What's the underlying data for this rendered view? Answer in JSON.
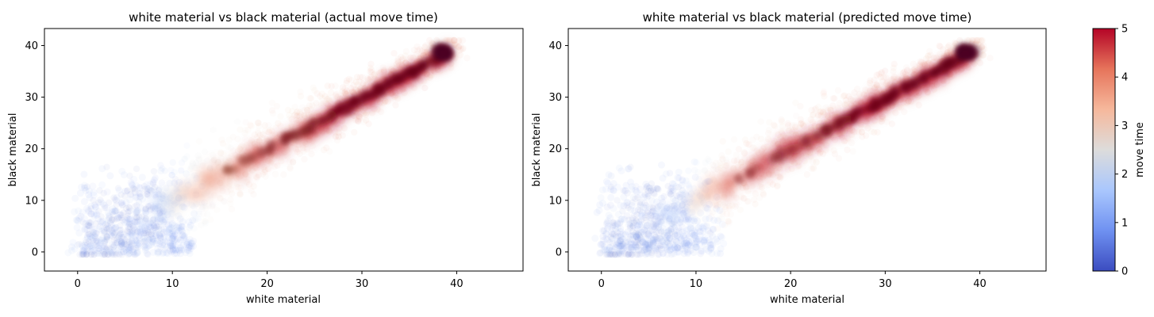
{
  "chart_data": [
    {
      "type": "scatter",
      "title": "white material vs black material (actual move time)",
      "xlabel": "white material",
      "ylabel": "black material",
      "xlim": [
        -3.5,
        47
      ],
      "ylim": [
        -3.7,
        43.3
      ],
      "xticks": [
        "0",
        "10",
        "20",
        "30",
        "40"
      ],
      "yticks": [
        "0",
        "10",
        "20",
        "30",
        "40"
      ],
      "color_by": "move time",
      "density": [
        {
          "x": 39,
          "y": 39,
          "move_time": 5
        },
        {
          "x": 33,
          "y": 32,
          "move_time": 5
        },
        {
          "x": 28,
          "y": 28,
          "move_time": 5
        },
        {
          "x": 24,
          "y": 24,
          "move_time": 4.6
        },
        {
          "x": 20,
          "y": 20,
          "move_time": 4.6
        },
        {
          "x": 16,
          "y": 16,
          "move_time": 4.2
        },
        {
          "x": 12,
          "y": 12,
          "move_time": 3.4
        },
        {
          "x": 8,
          "y": 8,
          "move_time": 1.6
        },
        {
          "x": 4,
          "y": 3,
          "move_time": 0.8
        },
        {
          "x": 1,
          "y": 5,
          "move_time": 0.6
        }
      ]
    },
    {
      "type": "scatter",
      "title": "white material vs black material (predicted move time)",
      "xlabel": "white material",
      "ylabel": "black material",
      "xlim": [
        -3.5,
        47
      ],
      "ylim": [
        -3.7,
        43.3
      ],
      "xticks": [
        "0",
        "10",
        "20",
        "30",
        "40"
      ],
      "yticks": [
        "0",
        "10",
        "20",
        "30",
        "40"
      ],
      "color_by": "move time",
      "density": [
        {
          "x": 39,
          "y": 39,
          "move_time": 5
        },
        {
          "x": 33,
          "y": 32,
          "move_time": 5
        },
        {
          "x": 28,
          "y": 28,
          "move_time": 5
        },
        {
          "x": 24,
          "y": 24,
          "move_time": 4.8
        },
        {
          "x": 20,
          "y": 20,
          "move_time": 4.8
        },
        {
          "x": 16,
          "y": 16,
          "move_time": 4.6
        },
        {
          "x": 12,
          "y": 12,
          "move_time": 4.2
        },
        {
          "x": 8,
          "y": 8,
          "move_time": 1.8
        },
        {
          "x": 4,
          "y": 3,
          "move_time": 0.8
        },
        {
          "x": 1,
          "y": 5,
          "move_time": 0.6
        }
      ]
    }
  ],
  "colorbar": {
    "label": "move time",
    "range": [
      0,
      5
    ],
    "ticks": [
      "0",
      "1",
      "2",
      "3",
      "4",
      "5"
    ],
    "colors": [
      "#3b4cc0",
      "#6f91f1",
      "#aac7fd",
      "#dddcdb",
      "#f6b89c",
      "#e6745b",
      "#b40426"
    ]
  }
}
